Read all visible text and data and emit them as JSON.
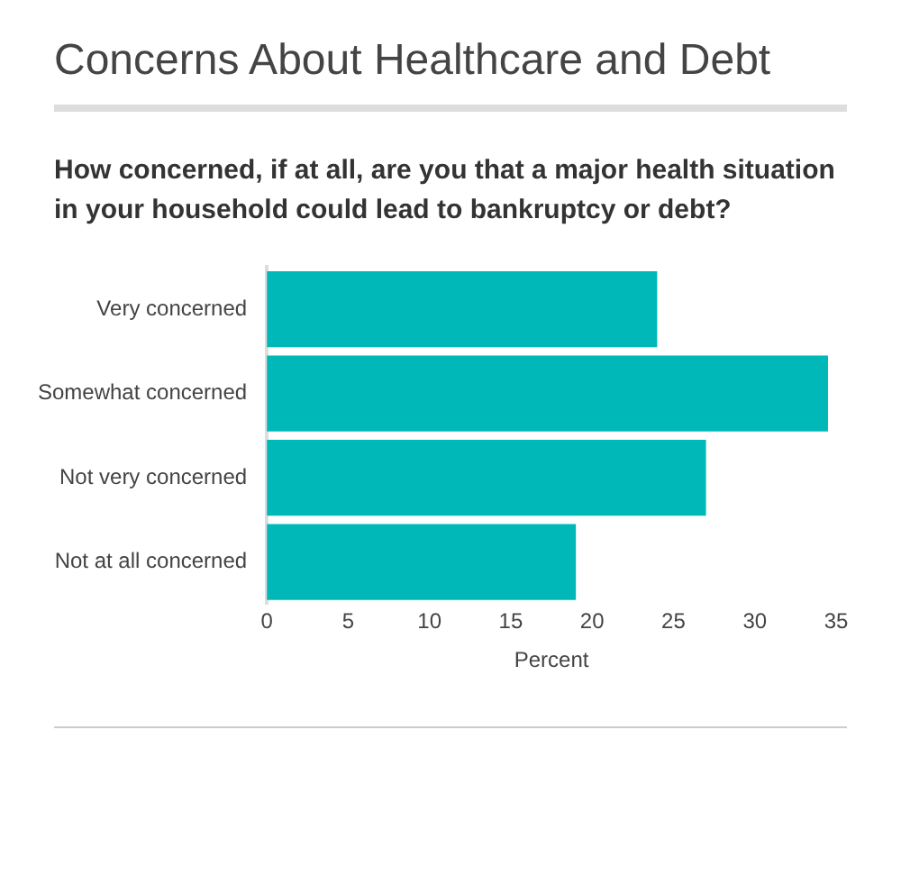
{
  "chart_data": {
    "type": "bar",
    "orientation": "horizontal",
    "title": "Concerns About Healthcare and Debt",
    "subtitle": "How concerned, if at all, are you that a major health situation in your household could lead to bankruptcy or debt?",
    "xlabel": "Percent",
    "categories": [
      "Very concerned",
      "Somewhat concerned",
      "Not very concerned",
      "Not at all concerned"
    ],
    "values": [
      24,
      34.5,
      27,
      19
    ],
    "color": "#00b8b8",
    "xlim": [
      0,
      35
    ],
    "xticks": [
      0,
      5,
      10,
      15,
      20,
      25,
      30,
      35
    ],
    "grid": false,
    "legend": false
  }
}
